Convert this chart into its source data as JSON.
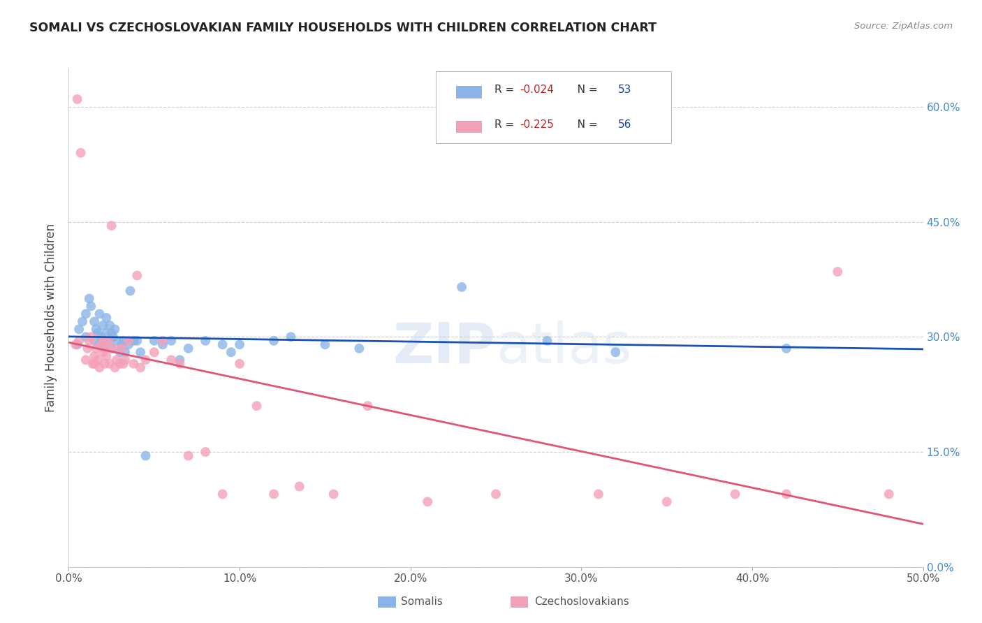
{
  "title": "SOMALI VS CZECHOSLOVAKIAN FAMILY HOUSEHOLDS WITH CHILDREN CORRELATION CHART",
  "source": "Source: ZipAtlas.com",
  "ylabel": "Family Households with Children",
  "xlim": [
    0.0,
    0.5
  ],
  "ylim": [
    -0.02,
    0.65
  ],
  "plot_ylim": [
    0.0,
    0.65
  ],
  "somali_R": -0.024,
  "somali_N": 53,
  "czech_R": -0.225,
  "czech_N": 56,
  "somali_color": "#8ab4e8",
  "czech_color": "#f4a0b8",
  "somali_line_color": "#1a52b3",
  "czech_line_color": "#e05575",
  "xtick_vals": [
    0.0,
    0.1,
    0.2,
    0.3,
    0.4,
    0.5
  ],
  "ytick_vals": [
    0.0,
    0.15,
    0.3,
    0.45,
    0.6
  ],
  "somali_x": [
    0.005,
    0.006,
    0.008,
    0.01,
    0.01,
    0.012,
    0.013,
    0.015,
    0.015,
    0.016,
    0.017,
    0.018,
    0.018,
    0.019,
    0.02,
    0.02,
    0.021,
    0.022,
    0.022,
    0.023,
    0.024,
    0.025,
    0.025,
    0.026,
    0.027,
    0.028,
    0.03,
    0.031,
    0.032,
    0.033,
    0.035,
    0.036,
    0.038,
    0.04,
    0.042,
    0.045,
    0.05,
    0.055,
    0.06,
    0.065,
    0.07,
    0.08,
    0.09,
    0.095,
    0.1,
    0.12,
    0.13,
    0.15,
    0.17,
    0.23,
    0.28,
    0.32,
    0.42
  ],
  "somali_y": [
    0.29,
    0.31,
    0.32,
    0.33,
    0.3,
    0.35,
    0.34,
    0.295,
    0.32,
    0.31,
    0.305,
    0.29,
    0.33,
    0.3,
    0.295,
    0.315,
    0.285,
    0.305,
    0.325,
    0.295,
    0.315,
    0.285,
    0.305,
    0.3,
    0.31,
    0.295,
    0.28,
    0.29,
    0.295,
    0.28,
    0.29,
    0.36,
    0.295,
    0.295,
    0.28,
    0.145,
    0.295,
    0.29,
    0.295,
    0.27,
    0.285,
    0.295,
    0.29,
    0.28,
    0.29,
    0.295,
    0.3,
    0.29,
    0.285,
    0.365,
    0.295,
    0.28,
    0.285
  ],
  "czech_x": [
    0.004,
    0.005,
    0.006,
    0.007,
    0.01,
    0.011,
    0.012,
    0.013,
    0.014,
    0.015,
    0.015,
    0.016,
    0.017,
    0.018,
    0.019,
    0.02,
    0.02,
    0.021,
    0.022,
    0.022,
    0.023,
    0.024,
    0.025,
    0.026,
    0.027,
    0.028,
    0.03,
    0.031,
    0.032,
    0.033,
    0.035,
    0.038,
    0.04,
    0.042,
    0.045,
    0.05,
    0.055,
    0.06,
    0.065,
    0.07,
    0.08,
    0.09,
    0.1,
    0.11,
    0.12,
    0.135,
    0.155,
    0.175,
    0.21,
    0.25,
    0.31,
    0.35,
    0.39,
    0.42,
    0.45,
    0.48
  ],
  "czech_y": [
    0.29,
    0.61,
    0.295,
    0.54,
    0.27,
    0.285,
    0.295,
    0.3,
    0.265,
    0.275,
    0.265,
    0.285,
    0.27,
    0.26,
    0.29,
    0.28,
    0.295,
    0.265,
    0.285,
    0.275,
    0.295,
    0.265,
    0.445,
    0.285,
    0.26,
    0.27,
    0.265,
    0.285,
    0.265,
    0.27,
    0.295,
    0.265,
    0.38,
    0.26,
    0.27,
    0.28,
    0.295,
    0.27,
    0.265,
    0.145,
    0.15,
    0.095,
    0.265,
    0.21,
    0.095,
    0.105,
    0.095,
    0.21,
    0.085,
    0.095,
    0.095,
    0.085,
    0.095,
    0.095,
    0.385,
    0.095
  ]
}
